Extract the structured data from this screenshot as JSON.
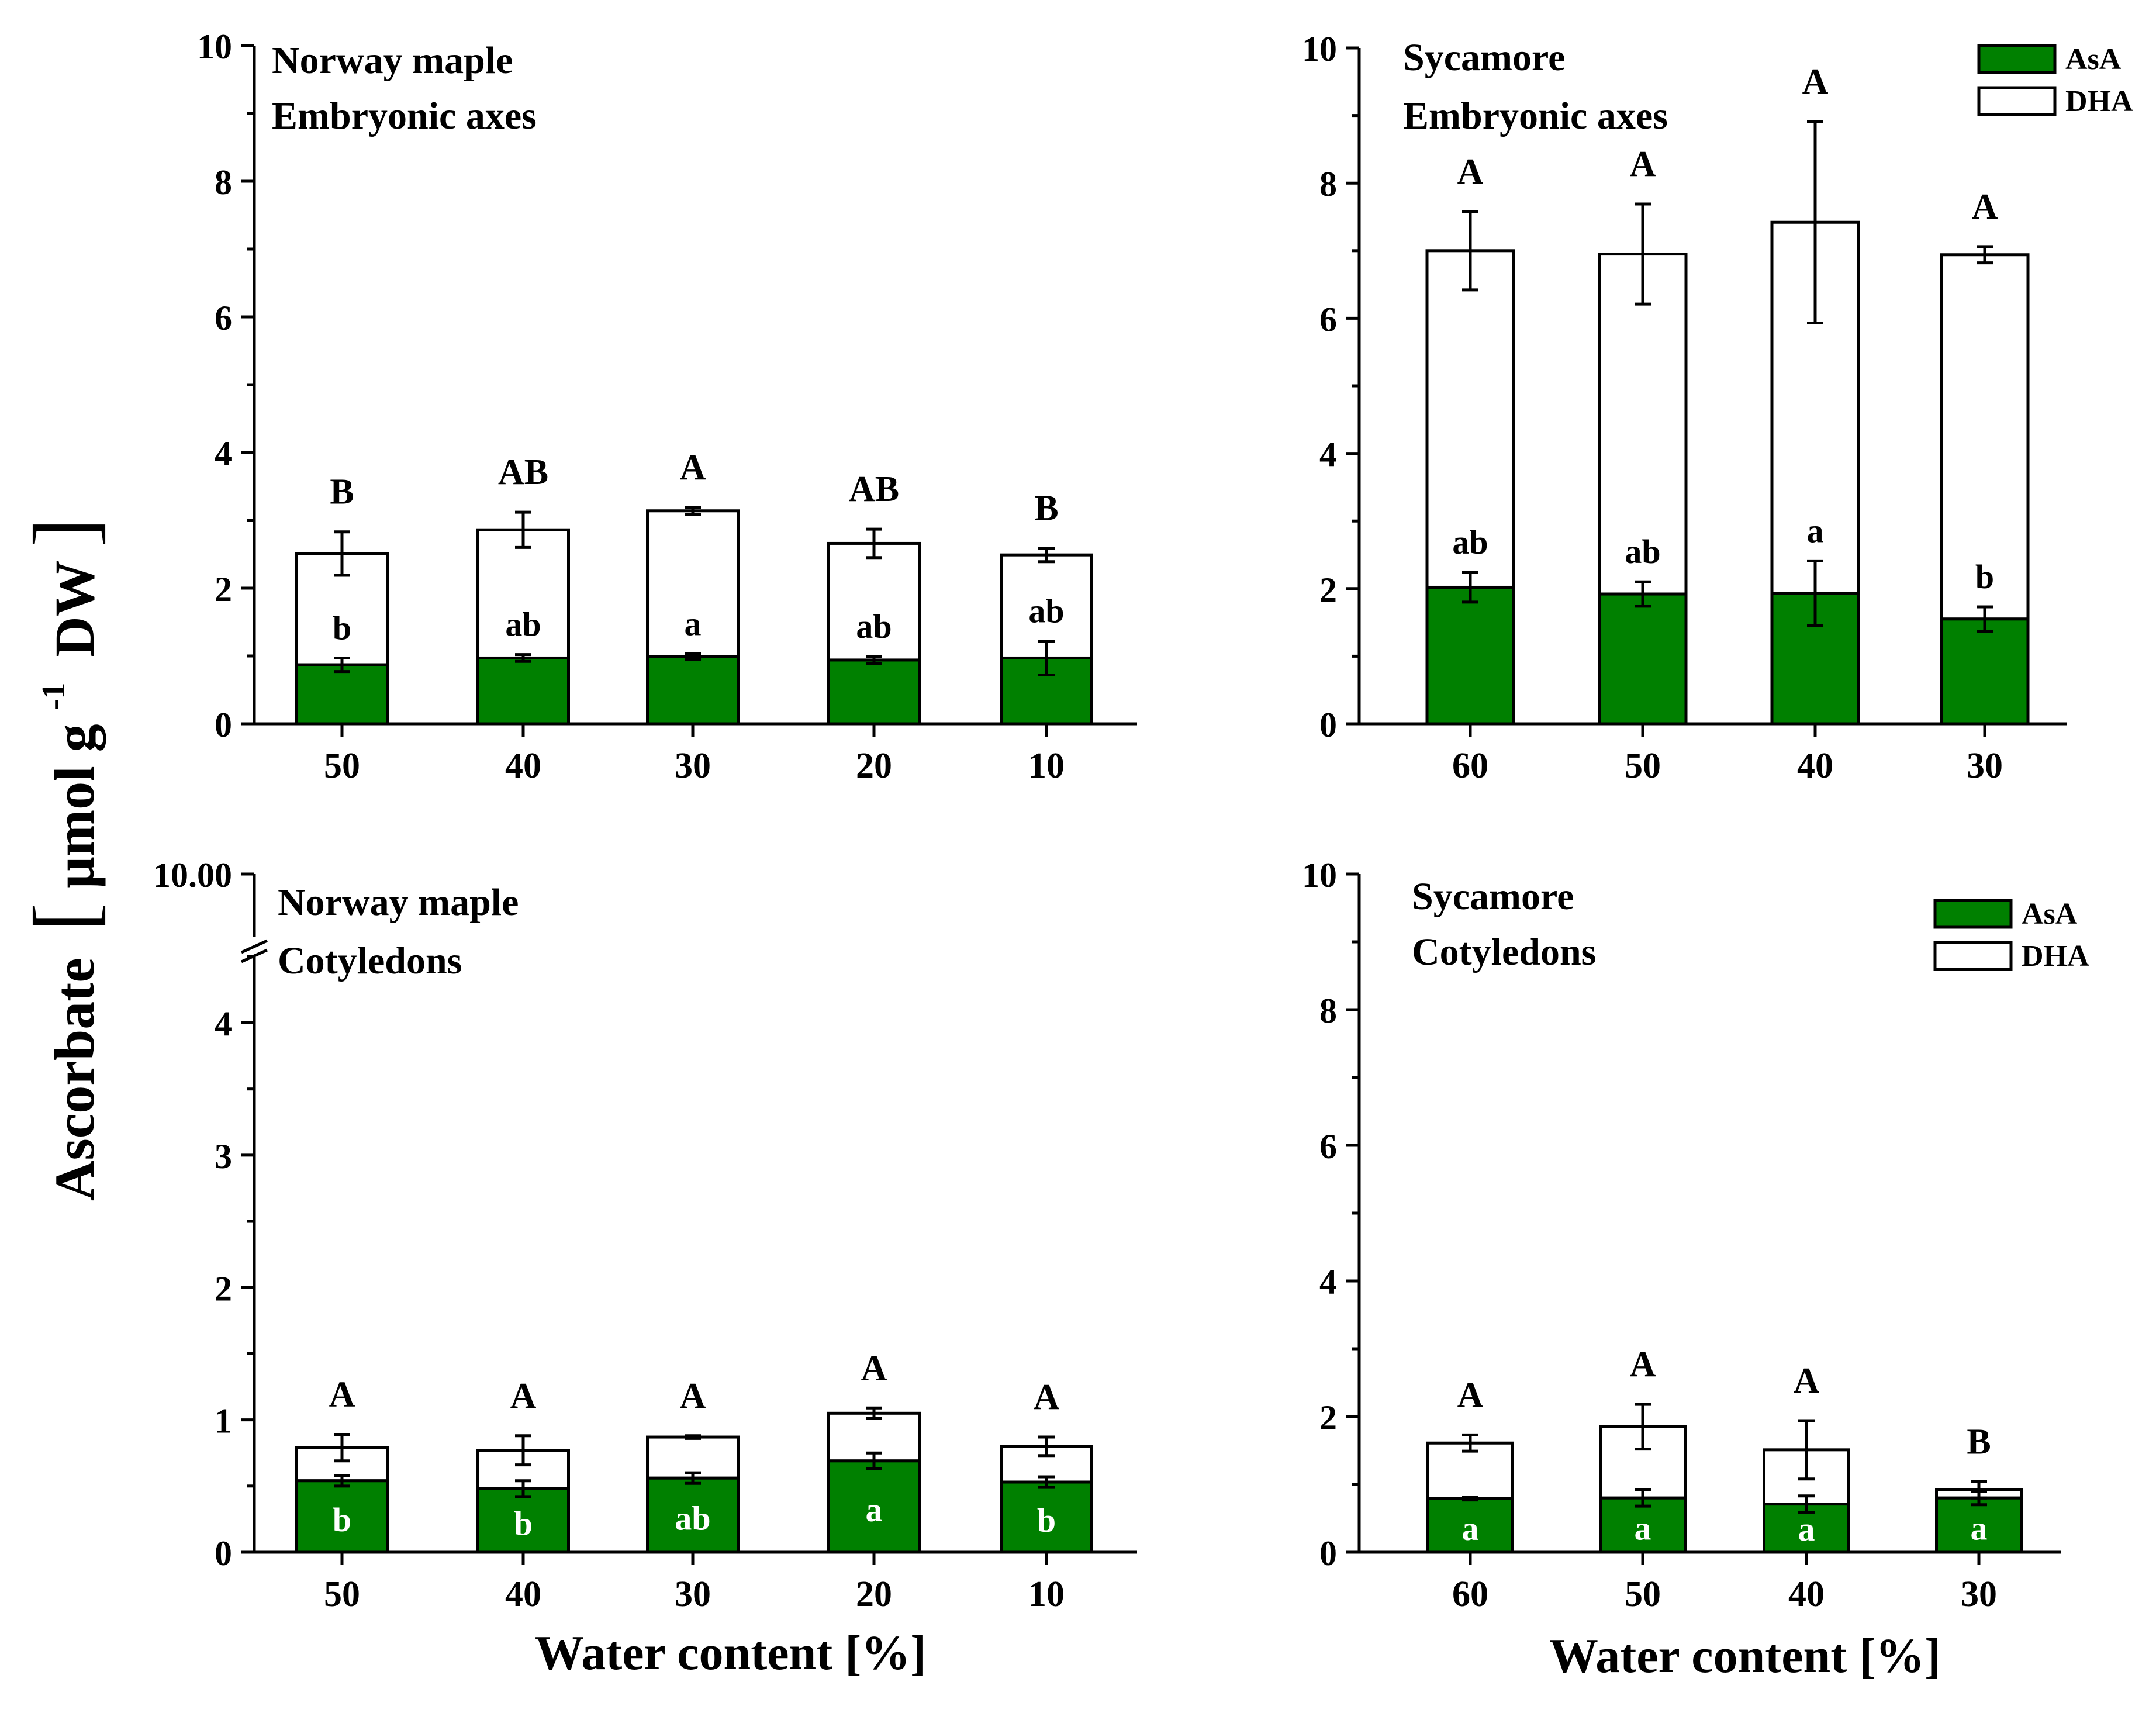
{
  "ylabel_main": "Ascorbate",
  "ylabel_unit_open": "[",
  "ylabel_unit_text": "µmol g",
  "ylabel_unit_sup": "-1",
  "ylabel_unit_tail": "DW",
  "ylabel_unit_close": "]",
  "xlabel": "Water content [%]",
  "colors": {
    "asa": "#008000",
    "dha": "#ffffff",
    "axis": "#000000"
  },
  "chart_data": [
    {
      "type": "bar",
      "stacked": true,
      "title_lines": [
        "Norway maple",
        "Embryonic axes"
      ],
      "categories": [
        "50",
        "40",
        "30",
        "20",
        "10"
      ],
      "ylim": [
        0,
        10
      ],
      "yticks": [
        "0",
        "2",
        "4",
        "6",
        "8",
        "10"
      ],
      "series": [
        {
          "name": "AsA",
          "values": [
            0.87,
            0.97,
            0.99,
            0.94,
            0.97
          ]
        },
        {
          "name": "DHA",
          "values": [
            1.64,
            1.89,
            2.15,
            1.72,
            1.52
          ]
        }
      ],
      "total_error": [
        0.32,
        0.26,
        0.05,
        0.21,
        0.1
      ],
      "asa_error": [
        0.1,
        0.05,
        0.04,
        0.05,
        0.25
      ],
      "total_letters": [
        "B",
        "AB",
        "A",
        "AB",
        "B"
      ],
      "asa_letters": [
        "b",
        "ab",
        "a",
        "ab",
        "ab"
      ],
      "asa_letter_color": "black",
      "legend": null
    },
    {
      "type": "bar",
      "stacked": true,
      "title_lines": [
        "Sycamore",
        "Embryonic axes"
      ],
      "categories": [
        "60",
        "50",
        "40",
        "30"
      ],
      "ylim": [
        0,
        10
      ],
      "yticks": [
        "0",
        "2",
        "4",
        "6",
        "8",
        "10"
      ],
      "series": [
        {
          "name": "AsA",
          "values": [
            2.02,
            1.92,
            1.93,
            1.55
          ]
        },
        {
          "name": "DHA",
          "values": [
            4.98,
            5.03,
            5.49,
            5.39
          ]
        }
      ],
      "total_error": [
        0.58,
        0.74,
        1.49,
        0.12
      ],
      "asa_error": [
        0.22,
        0.18,
        0.48,
        0.18
      ],
      "total_letters": [
        "A",
        "A",
        "A",
        "A"
      ],
      "asa_letters": [
        "ab",
        "ab",
        "a",
        "b"
      ],
      "asa_letter_color": "black",
      "legend": [
        "AsA",
        "DHA"
      ]
    },
    {
      "type": "bar",
      "stacked": true,
      "title_lines": [
        "Norway maple",
        "Cotyledons"
      ],
      "categories": [
        "50",
        "40",
        "30",
        "20",
        "10"
      ],
      "ylim": [
        0,
        10
      ],
      "axis_break": [
        4.6,
        10
      ],
      "yticks": [
        "0",
        "1",
        "2",
        "3",
        "4",
        "10.00"
      ],
      "series": [
        {
          "name": "AsA",
          "values": [
            0.54,
            0.48,
            0.56,
            0.69,
            0.53
          ]
        },
        {
          "name": "DHA",
          "values": [
            0.25,
            0.29,
            0.31,
            0.36,
            0.27
          ]
        }
      ],
      "total_error": [
        0.1,
        0.11,
        0.01,
        0.04,
        0.07
      ],
      "asa_error": [
        0.04,
        0.06,
        0.04,
        0.06,
        0.04
      ],
      "total_letters": [
        "A",
        "A",
        "A",
        "A",
        "A"
      ],
      "asa_letters": [
        "b",
        "b",
        "ab",
        "a",
        "b"
      ],
      "asa_letter_color": "white",
      "legend": null
    },
    {
      "type": "bar",
      "stacked": true,
      "title_lines": [
        "Sycamore",
        "Cotyledons"
      ],
      "categories": [
        "60",
        "50",
        "40",
        "30"
      ],
      "ylim": [
        0,
        10
      ],
      "yticks": [
        "0",
        "2",
        "4",
        "6",
        "8",
        "10"
      ],
      "series": [
        {
          "name": "AsA",
          "values": [
            0.79,
            0.8,
            0.71,
            0.8
          ]
        },
        {
          "name": "DHA",
          "values": [
            0.82,
            1.05,
            0.8,
            0.12
          ]
        }
      ],
      "total_error": [
        0.12,
        0.33,
        0.43,
        0.12
      ],
      "asa_error": [
        0.02,
        0.12,
        0.12,
        0.1
      ],
      "total_letters": [
        "A",
        "A",
        "A",
        "B"
      ],
      "asa_letters": [
        "a",
        "a",
        "a",
        "a"
      ],
      "asa_letter_color": "white",
      "legend": [
        "AsA",
        "DHA"
      ]
    }
  ]
}
